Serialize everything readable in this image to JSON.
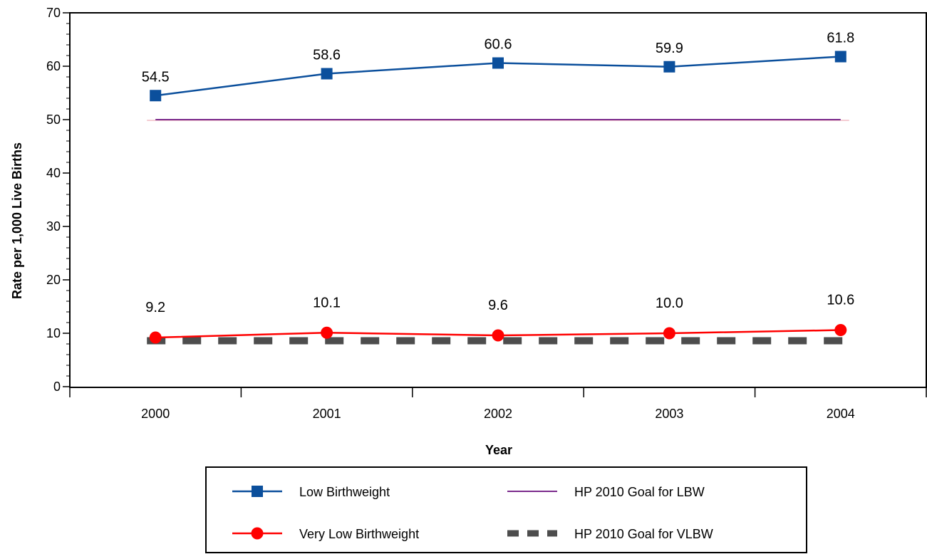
{
  "chart_data": {
    "type": "line",
    "xlabel": "Year",
    "ylabel": "Rate per 1,000 Live Births",
    "ylim": [
      0,
      70
    ],
    "yticks": [
      "0",
      "10",
      "20",
      "30",
      "40",
      "50",
      "60",
      "70"
    ],
    "categories": [
      "2000",
      "2001",
      "2002",
      "2003",
      "2004"
    ],
    "series": [
      {
        "name": "Low Birthweight",
        "values": [
          54.5,
          58.6,
          60.6,
          59.9,
          61.8
        ],
        "labels": [
          "54.5",
          "58.6",
          "60.6",
          "59.9",
          "61.8"
        ],
        "color": "#0b4f9c",
        "marker": "square"
      },
      {
        "name": "Very Low Birthweight",
        "values": [
          9.2,
          10.1,
          9.6,
          10.0,
          10.6
        ],
        "labels": [
          "9.2",
          "10.1",
          "9.6",
          "10.0",
          "10.6"
        ],
        "color": "#ff0000",
        "marker": "circle"
      },
      {
        "name": "HP 2010 Goal for LBW",
        "values": [
          50,
          50,
          50,
          50,
          50
        ],
        "color": "#7b2a8c",
        "marker": "none",
        "dash": "solid"
      },
      {
        "name": "HP 2010 Goal for VLBW",
        "values": [
          9,
          9,
          9,
          9,
          9
        ],
        "color": "#4d4d4d",
        "marker": "none",
        "dash": "dashed"
      }
    ],
    "grid": false,
    "legend_position": "bottom"
  }
}
